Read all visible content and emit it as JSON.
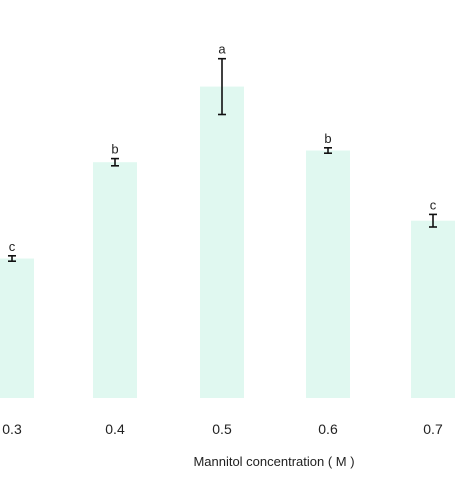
{
  "chart_data": {
    "type": "bar",
    "categories": [
      "0.3",
      "0.4",
      "0.5",
      "0.6",
      "0.7"
    ],
    "values": [
      155,
      262,
      346,
      275,
      197
    ],
    "errors": [
      3,
      4,
      31,
      3,
      7
    ],
    "significance": [
      "c",
      "b",
      "a",
      "b",
      "c"
    ],
    "title": "",
    "xlabel": "Mannitol  concentration ( M )",
    "ylabel": "",
    "ylim": [
      0,
      420
    ],
    "grid": false,
    "legend": "none",
    "bar_color": "#e0f8f0",
    "error_color": "#111111"
  }
}
